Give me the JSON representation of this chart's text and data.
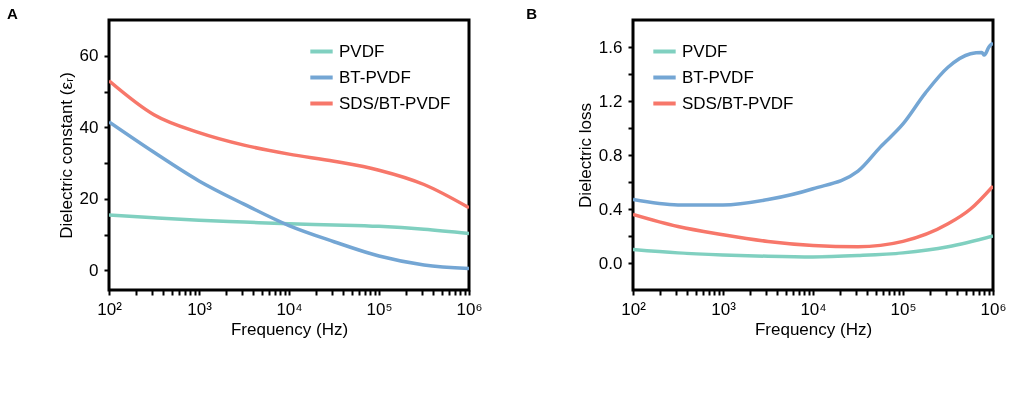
{
  "chart_data": [
    {
      "type": "line",
      "title": "A",
      "xlabel": "Frequency (Hz)",
      "ylabel": "Dielectric constant (εᵣ)",
      "log": "x",
      "grid": false,
      "legend": "top right",
      "line_style": "solid",
      "marker": "none",
      "xlim": [
        100,
        1000000
      ],
      "xticks": [
        {
          "value": 100,
          "label": "10²"
        },
        {
          "value": 200,
          "label": null
        },
        {
          "value": 300,
          "label": null
        },
        {
          "value": 400,
          "label": null
        },
        {
          "value": 500,
          "label": null
        },
        {
          "value": 600,
          "label": null
        },
        {
          "value": 700,
          "label": null
        },
        {
          "value": 800,
          "label": null
        },
        {
          "value": 900,
          "label": null
        },
        {
          "value": 1000,
          "label": "10³"
        },
        {
          "value": 2000,
          "label": null
        },
        {
          "value": 3000,
          "label": null
        },
        {
          "value": 4000,
          "label": null
        },
        {
          "value": 5000,
          "label": null
        },
        {
          "value": 6000,
          "label": null
        },
        {
          "value": 7000,
          "label": null
        },
        {
          "value": 8000,
          "label": null
        },
        {
          "value": 9000,
          "label": null
        },
        {
          "value": 10000,
          "label": "10⁴"
        },
        {
          "value": 20000,
          "label": null
        },
        {
          "value": 30000,
          "label": null
        },
        {
          "value": 40000,
          "label": null
        },
        {
          "value": 50000,
          "label": null
        },
        {
          "value": 60000,
          "label": null
        },
        {
          "value": 70000,
          "label": null
        },
        {
          "value": 80000,
          "label": null
        },
        {
          "value": 90000,
          "label": null
        },
        {
          "value": 100000,
          "label": "10⁵"
        },
        {
          "value": 200000,
          "label": null
        },
        {
          "value": 300000,
          "label": null
        },
        {
          "value": 400000,
          "label": null
        },
        {
          "value": 500000,
          "label": null
        },
        {
          "value": 600000,
          "label": null
        },
        {
          "value": 700000,
          "label": null
        },
        {
          "value": 800000,
          "label": null
        },
        {
          "value": 900000,
          "label": null
        },
        {
          "value": 1000000,
          "label": "10⁶"
        }
      ],
      "ylim": [
        -5.5,
        70
      ],
      "yticks": [
        0,
        {
          "value": 10,
          "label": null
        },
        20,
        {
          "value": 30,
          "label": null
        },
        40,
        {
          "value": 50,
          "label": null
        },
        60
      ],
      "x": [
        100,
        316,
        1000,
        3162,
        10000,
        31623,
        100000,
        316228,
        1000000
      ],
      "series": [
        {
          "name": "PVDF",
          "color": "#80d0c0",
          "values": [
            15.5,
            14.7,
            14,
            13.5,
            13,
            12.7,
            12.3,
            11.5,
            10.3
          ]
        },
        {
          "name": "BT-PVDF",
          "color": "#74a6d4",
          "values": [
            41.5,
            33,
            25,
            18.5,
            12.5,
            8,
            4,
            1.5,
            0.5
          ]
        },
        {
          "name": "SDS/BT-PVDF",
          "color": "#f7776a",
          "values": [
            53,
            43.5,
            38.5,
            35,
            32.5,
            30.5,
            28,
            24,
            17.5
          ]
        }
      ]
    },
    {
      "type": "line",
      "title": "B",
      "xlabel": "Frequency (Hz)",
      "ylabel": "Dielectric loss",
      "log": "x",
      "grid": false,
      "legend": "top left",
      "line_style": "solid",
      "marker": "none",
      "xlim": [
        100,
        1000000
      ],
      "xticks": [
        {
          "value": 100,
          "label": "10²"
        },
        {
          "value": 200,
          "label": null
        },
        {
          "value": 300,
          "label": null
        },
        {
          "value": 400,
          "label": null
        },
        {
          "value": 500,
          "label": null
        },
        {
          "value": 600,
          "label": null
        },
        {
          "value": 700,
          "label": null
        },
        {
          "value": 800,
          "label": null
        },
        {
          "value": 900,
          "label": null
        },
        {
          "value": 1000,
          "label": "10³"
        },
        {
          "value": 2000,
          "label": null
        },
        {
          "value": 3000,
          "label": null
        },
        {
          "value": 4000,
          "label": null
        },
        {
          "value": 5000,
          "label": null
        },
        {
          "value": 6000,
          "label": null
        },
        {
          "value": 7000,
          "label": null
        },
        {
          "value": 8000,
          "label": null
        },
        {
          "value": 9000,
          "label": null
        },
        {
          "value": 10000,
          "label": "10⁴"
        },
        {
          "value": 20000,
          "label": null
        },
        {
          "value": 30000,
          "label": null
        },
        {
          "value": 40000,
          "label": null
        },
        {
          "value": 50000,
          "label": null
        },
        {
          "value": 60000,
          "label": null
        },
        {
          "value": 70000,
          "label": null
        },
        {
          "value": 80000,
          "label": null
        },
        {
          "value": 90000,
          "label": null
        },
        {
          "value": 100000,
          "label": "10⁵"
        },
        {
          "value": 200000,
          "label": null
        },
        {
          "value": 300000,
          "label": null
        },
        {
          "value": 400000,
          "label": null
        },
        {
          "value": 500000,
          "label": null
        },
        {
          "value": 600000,
          "label": null
        },
        {
          "value": 700000,
          "label": null
        },
        {
          "value": 800000,
          "label": null
        },
        {
          "value": 900000,
          "label": null
        },
        {
          "value": 1000000,
          "label": "10⁶"
        }
      ],
      "ylim": [
        -0.2,
        1.8
      ],
      "yticks": [
        {
          "value": 0,
          "label": "0.0"
        },
        {
          "value": 0.2,
          "label": null
        },
        0.4,
        {
          "value": 0.6,
          "label": null
        },
        0.8,
        {
          "value": 1.0,
          "label": null
        },
        1.2,
        {
          "value": 1.4,
          "label": null
        },
        1.6
      ],
      "series": [
        {
          "name": "PVDF",
          "color": "#80d0c0",
          "x": [
            100,
            316,
            1000,
            3162,
            10000,
            31623,
            100000,
            316228,
            1000000
          ],
          "values": [
            0.1,
            0.075,
            0.06,
            0.05,
            0.045,
            0.055,
            0.075,
            0.12,
            0.2
          ]
        },
        {
          "name": "BT-PVDF",
          "color": "#74a6d4",
          "x": [
            100,
            316,
            1000,
            3162,
            10000,
            31623,
            56234,
            100000,
            177828,
            316228,
            562341,
            750000,
            800000,
            900000,
            1000000
          ],
          "values": [
            0.47,
            0.43,
            0.43,
            0.47,
            0.55,
            0.68,
            0.86,
            1.03,
            1.26,
            1.45,
            1.55,
            1.56,
            1.54,
            1.6,
            1.63
          ]
        },
        {
          "name": "SDS/BT-PVDF",
          "color": "#f7776a",
          "x": [
            100,
            316,
            1000,
            3162,
            10000,
            31623,
            100000,
            316228,
            562341,
            1000000
          ],
          "values": [
            0.36,
            0.27,
            0.21,
            0.16,
            0.13,
            0.12,
            0.16,
            0.29,
            0.4,
            0.57
          ]
        }
      ]
    }
  ]
}
